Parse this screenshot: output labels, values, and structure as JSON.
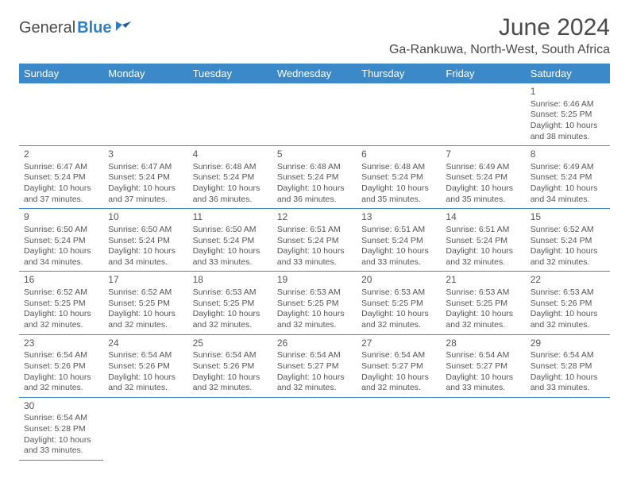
{
  "logo": {
    "text1": "General",
    "text2": "Blue"
  },
  "title": "June 2024",
  "location": "Ga-Rankuwa, North-West, South Africa",
  "colors": {
    "header_bg": "#3b89c9",
    "header_text": "#ffffff",
    "border": "#3b89c9",
    "text": "#555555",
    "title_text": "#4a4a4a",
    "logo_blue": "#2f7fc2"
  },
  "weekdays": [
    "Sunday",
    "Monday",
    "Tuesday",
    "Wednesday",
    "Thursday",
    "Friday",
    "Saturday"
  ],
  "weeks": [
    [
      null,
      null,
      null,
      null,
      null,
      null,
      {
        "n": "1",
        "sr": "6:46 AM",
        "ss": "5:25 PM",
        "dl": "10 hours and 38 minutes."
      }
    ],
    [
      {
        "n": "2",
        "sr": "6:47 AM",
        "ss": "5:24 PM",
        "dl": "10 hours and 37 minutes."
      },
      {
        "n": "3",
        "sr": "6:47 AM",
        "ss": "5:24 PM",
        "dl": "10 hours and 37 minutes."
      },
      {
        "n": "4",
        "sr": "6:48 AM",
        "ss": "5:24 PM",
        "dl": "10 hours and 36 minutes."
      },
      {
        "n": "5",
        "sr": "6:48 AM",
        "ss": "5:24 PM",
        "dl": "10 hours and 36 minutes."
      },
      {
        "n": "6",
        "sr": "6:48 AM",
        "ss": "5:24 PM",
        "dl": "10 hours and 35 minutes."
      },
      {
        "n": "7",
        "sr": "6:49 AM",
        "ss": "5:24 PM",
        "dl": "10 hours and 35 minutes."
      },
      {
        "n": "8",
        "sr": "6:49 AM",
        "ss": "5:24 PM",
        "dl": "10 hours and 34 minutes."
      }
    ],
    [
      {
        "n": "9",
        "sr": "6:50 AM",
        "ss": "5:24 PM",
        "dl": "10 hours and 34 minutes."
      },
      {
        "n": "10",
        "sr": "6:50 AM",
        "ss": "5:24 PM",
        "dl": "10 hours and 34 minutes."
      },
      {
        "n": "11",
        "sr": "6:50 AM",
        "ss": "5:24 PM",
        "dl": "10 hours and 33 minutes."
      },
      {
        "n": "12",
        "sr": "6:51 AM",
        "ss": "5:24 PM",
        "dl": "10 hours and 33 minutes."
      },
      {
        "n": "13",
        "sr": "6:51 AM",
        "ss": "5:24 PM",
        "dl": "10 hours and 33 minutes."
      },
      {
        "n": "14",
        "sr": "6:51 AM",
        "ss": "5:24 PM",
        "dl": "10 hours and 32 minutes."
      },
      {
        "n": "15",
        "sr": "6:52 AM",
        "ss": "5:24 PM",
        "dl": "10 hours and 32 minutes."
      }
    ],
    [
      {
        "n": "16",
        "sr": "6:52 AM",
        "ss": "5:25 PM",
        "dl": "10 hours and 32 minutes."
      },
      {
        "n": "17",
        "sr": "6:52 AM",
        "ss": "5:25 PM",
        "dl": "10 hours and 32 minutes."
      },
      {
        "n": "18",
        "sr": "6:53 AM",
        "ss": "5:25 PM",
        "dl": "10 hours and 32 minutes."
      },
      {
        "n": "19",
        "sr": "6:53 AM",
        "ss": "5:25 PM",
        "dl": "10 hours and 32 minutes."
      },
      {
        "n": "20",
        "sr": "6:53 AM",
        "ss": "5:25 PM",
        "dl": "10 hours and 32 minutes."
      },
      {
        "n": "21",
        "sr": "6:53 AM",
        "ss": "5:25 PM",
        "dl": "10 hours and 32 minutes."
      },
      {
        "n": "22",
        "sr": "6:53 AM",
        "ss": "5:26 PM",
        "dl": "10 hours and 32 minutes."
      }
    ],
    [
      {
        "n": "23",
        "sr": "6:54 AM",
        "ss": "5:26 PM",
        "dl": "10 hours and 32 minutes."
      },
      {
        "n": "24",
        "sr": "6:54 AM",
        "ss": "5:26 PM",
        "dl": "10 hours and 32 minutes."
      },
      {
        "n": "25",
        "sr": "6:54 AM",
        "ss": "5:26 PM",
        "dl": "10 hours and 32 minutes."
      },
      {
        "n": "26",
        "sr": "6:54 AM",
        "ss": "5:27 PM",
        "dl": "10 hours and 32 minutes."
      },
      {
        "n": "27",
        "sr": "6:54 AM",
        "ss": "5:27 PM",
        "dl": "10 hours and 32 minutes."
      },
      {
        "n": "28",
        "sr": "6:54 AM",
        "ss": "5:27 PM",
        "dl": "10 hours and 33 minutes."
      },
      {
        "n": "29",
        "sr": "6:54 AM",
        "ss": "5:28 PM",
        "dl": "10 hours and 33 minutes."
      }
    ],
    [
      {
        "n": "30",
        "sr": "6:54 AM",
        "ss": "5:28 PM",
        "dl": "10 hours and 33 minutes."
      },
      null,
      null,
      null,
      null,
      null,
      null
    ]
  ],
  "labels": {
    "sunrise": "Sunrise:",
    "sunset": "Sunset:",
    "daylight": "Daylight:"
  }
}
